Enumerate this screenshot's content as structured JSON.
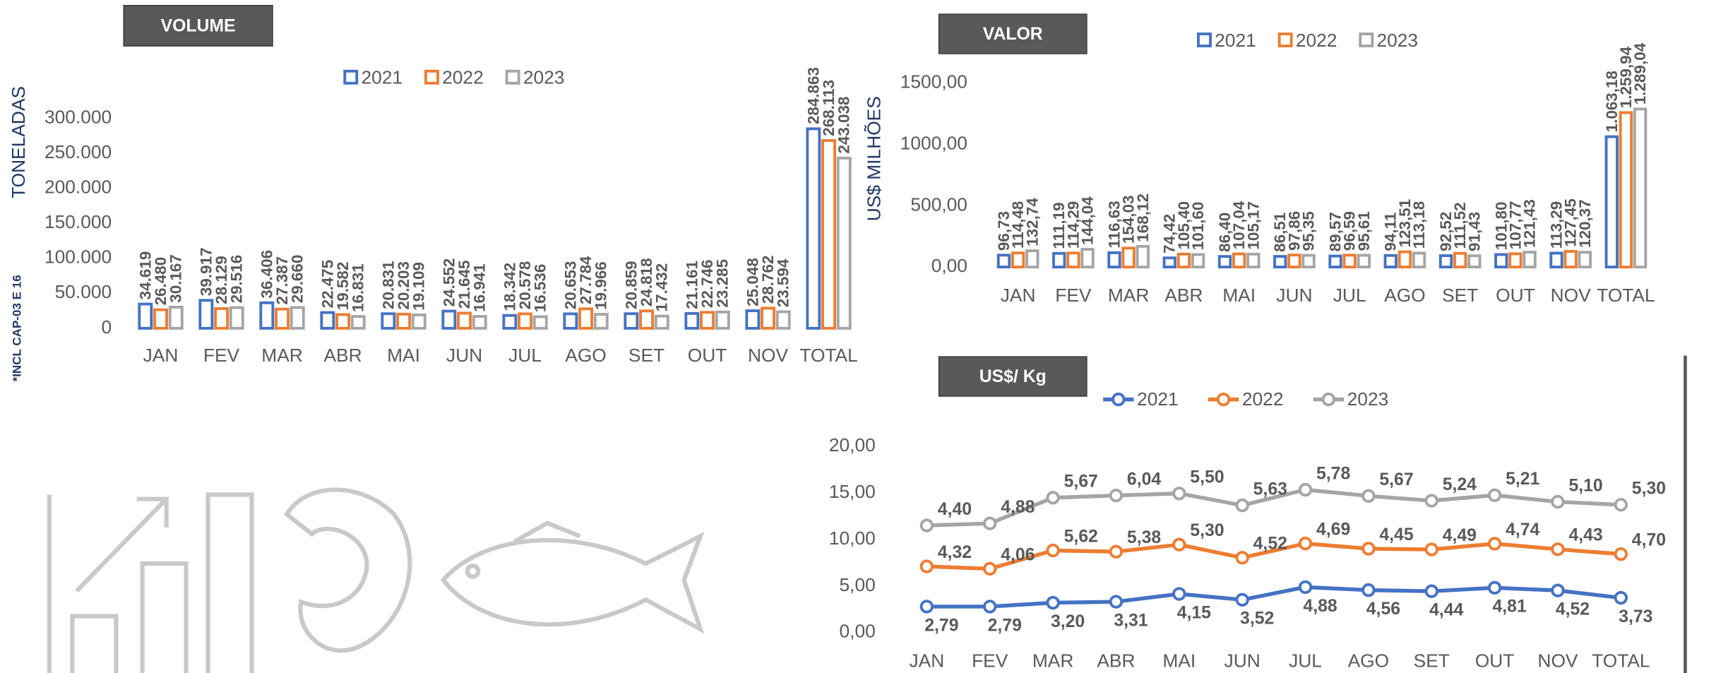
{
  "chart_data": [
    {
      "type": "bar",
      "title": "VOLUME",
      "y_label": "TONELADAS",
      "note": "*INCL CAP-03 E 16",
      "categories": [
        "JAN",
        "FEV",
        "MAR",
        "ABR",
        "MAI",
        "JUN",
        "JUL",
        "AGO",
        "SET",
        "OUT",
        "NOV",
        "TOTAL"
      ],
      "series": [
        {
          "name": "2021",
          "color": "#4472c4",
          "values": [
            34619,
            39917,
            36406,
            22475,
            20831,
            24552,
            18342,
            20653,
            20859,
            21161,
            25048,
            284863
          ],
          "value_labels": [
            "34.619",
            "39.917",
            "36.406",
            "22.475",
            "20.831",
            "24.552",
            "18.342",
            "20.653",
            "20.859",
            "21.161",
            "25.048",
            "284.863"
          ]
        },
        {
          "name": "2022",
          "color": "#ed7d31",
          "values": [
            26480,
            28129,
            27387,
            19582,
            20203,
            21645,
            20578,
            27784,
            24818,
            22746,
            28762,
            268113
          ],
          "value_labels": [
            "26.480",
            "28.129",
            "27.387",
            "19.582",
            "20.203",
            "21.645",
            "20.578",
            "27.784",
            "24.818",
            "22.746",
            "28.762",
            "268.113"
          ]
        },
        {
          "name": "2023",
          "color": "#a5a5a5",
          "values": [
            30167,
            29516,
            29660,
            16831,
            19109,
            16941,
            16536,
            19966,
            17432,
            23285,
            23594,
            243038
          ],
          "value_labels": [
            "30.167",
            "29.516",
            "29.660",
            "16.831",
            "19.109",
            "16.941",
            "16.536",
            "19.966",
            "17.432",
            "23.285",
            "23.594",
            "243.038"
          ]
        }
      ],
      "ylim": [
        0,
        300000
      ],
      "yticks": [
        0,
        {
          "value": 50000,
          "label": "50.000"
        },
        {
          "value": 100000,
          "label": "100.000"
        },
        {
          "value": 150000,
          "label": "150.000"
        },
        {
          "value": 200000,
          "label": "200.000"
        },
        {
          "value": 250000,
          "label": "250.000"
        },
        {
          "value": 300000,
          "label": "300.000"
        }
      ],
      "grid": false
    },
    {
      "type": "bar",
      "title": "VALOR",
      "y_label": "US$ MILHÕES",
      "categories": [
        "JAN",
        "FEV",
        "MAR",
        "ABR",
        "MAI",
        "JUN",
        "JUL",
        "AGO",
        "SET",
        "OUT",
        "NOV",
        "TOTAL"
      ],
      "series": [
        {
          "name": "2021",
          "color": "#4472c4",
          "values": [
            96.73,
            111.19,
            116.63,
            74.42,
            86.4,
            86.51,
            89.57,
            94.11,
            92.52,
            101.8,
            113.29,
            1063.18
          ],
          "value_labels": [
            "96,73",
            "111,19",
            "116,63",
            "74,42",
            "86,40",
            "86,51",
            "89,57",
            "94,11",
            "92,52",
            "101,80",
            "113,29",
            "1.063,18"
          ]
        },
        {
          "name": "2022",
          "color": "#ed7d31",
          "values": [
            114.48,
            114.29,
            154.03,
            105.4,
            107.04,
            97.86,
            96.59,
            123.51,
            111.52,
            107.77,
            127.45,
            1259.94
          ],
          "value_labels": [
            "114,48",
            "114,29",
            "154,03",
            "105,40",
            "107,04",
            "97,86",
            "96,59",
            "123,51",
            "111,52",
            "107,77",
            "127,45",
            "1.259,94"
          ]
        },
        {
          "name": "2023",
          "color": "#a5a5a5",
          "values": [
            132.74,
            144.04,
            168.12,
            101.6,
            105.17,
            95.35,
            95.61,
            113.18,
            91.43,
            121.43,
            120.37,
            1289.04
          ],
          "value_labels": [
            "132,74",
            "144,04",
            "168,12",
            "101,60",
            "105,17",
            "95,35",
            "95,61",
            "113,18",
            "91,43",
            "121,43",
            "120,37",
            "1.289,04"
          ]
        }
      ],
      "ylim": [
        0,
        1500
      ],
      "yticks": [
        {
          "value": 0,
          "label": "0,00"
        },
        {
          "value": 500,
          "label": "500,00"
        },
        {
          "value": 1000,
          "label": "1000,00"
        },
        {
          "value": 1500,
          "label": "1500,00"
        }
      ],
      "grid": false
    },
    {
      "type": "line",
      "title": "US$/ Kg",
      "stacked": true,
      "categories": [
        "JAN",
        "FEV",
        "MAR",
        "ABR",
        "MAI",
        "JUN",
        "JUL",
        "AGO",
        "SET",
        "OUT",
        "NOV",
        "TOTAL"
      ],
      "series": [
        {
          "name": "2021",
          "color": "#4472c4",
          "values": [
            2.79,
            2.79,
            3.2,
            3.31,
            4.15,
            3.52,
            4.88,
            4.56,
            4.44,
            4.81,
            4.52,
            3.73
          ],
          "value_labels": [
            "2,79",
            "2,79",
            "3,20",
            "3,31",
            "4,15",
            "3,52",
            "4,88",
            "4,56",
            "4,44",
            "4,81",
            "4,52",
            "3,73"
          ]
        },
        {
          "name": "2022",
          "color": "#ed7d31",
          "values": [
            4.32,
            4.06,
            5.62,
            5.38,
            5.3,
            4.52,
            4.69,
            4.45,
            4.49,
            4.74,
            4.43,
            4.7
          ],
          "value_labels": [
            "4,32",
            "4,06",
            "5,62",
            "5,38",
            "5,30",
            "4,52",
            "4,69",
            "4,45",
            "4,49",
            "4,74",
            "4,43",
            "4,70"
          ]
        },
        {
          "name": "2023",
          "color": "#a5a5a5",
          "values": [
            4.4,
            4.88,
            5.67,
            6.04,
            5.5,
            5.63,
            5.78,
            5.67,
            5.24,
            5.21,
            5.1,
            5.3
          ],
          "value_labels": [
            "4,40",
            "4,88",
            "5,67",
            "6,04",
            "5,50",
            "5,63",
            "5,78",
            "5,67",
            "5,24",
            "5,21",
            "5,10",
            "5,30"
          ]
        }
      ],
      "ylim": [
        0,
        20
      ],
      "yticks": [
        {
          "value": 0,
          "label": "0,00"
        },
        {
          "value": 5,
          "label": "5,00"
        },
        {
          "value": 10,
          "label": "10,00"
        },
        {
          "value": 15,
          "label": "15,00"
        },
        {
          "value": 20,
          "label": "20,00"
        }
      ],
      "grid": false
    }
  ]
}
